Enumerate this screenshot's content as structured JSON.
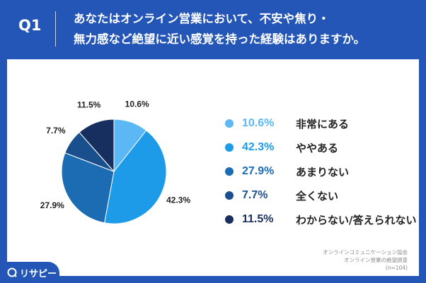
{
  "question": {
    "number": "Q1",
    "line1": "あなたはオンライン営業において、不安や焦り・",
    "line2": "無力感など絶望に近い感覚を持った経験はありますか。"
  },
  "chart_data": {
    "type": "pie",
    "title": "あなたはオンライン営業において、不安や焦り・無力感など絶望に近い感覚を持った経験はありますか。",
    "categories": [
      "非常にある",
      "ややある",
      "あまりない",
      "全くない",
      "わからない/答えられない"
    ],
    "values": [
      10.6,
      42.3,
      27.9,
      7.7,
      11.5
    ],
    "value_labels": [
      "10.6%",
      "42.3%",
      "27.9%",
      "7.7%",
      "11.5%"
    ],
    "colors": [
      "#5bb8f5",
      "#1e9be8",
      "#1c6cb3",
      "#1a4f8e",
      "#172f5f"
    ],
    "start": "12 o'clock",
    "direction": "clockwise"
  },
  "legend": [
    {
      "value": "10.6%",
      "label": "非常にある"
    },
    {
      "value": "42.3%",
      "label": "ややある"
    },
    {
      "value": "27.9%",
      "label": "あまりない"
    },
    {
      "value": "7.7%",
      "label": "全くない"
    },
    {
      "value": "11.5%",
      "label": "わからない/答えられない"
    }
  ],
  "source": {
    "line1": "オンラインコミュニケーション協会",
    "line2": "オンライン営業の絶望調査",
    "line3": "(n=104)"
  },
  "brand": {
    "name": "リサピー"
  }
}
